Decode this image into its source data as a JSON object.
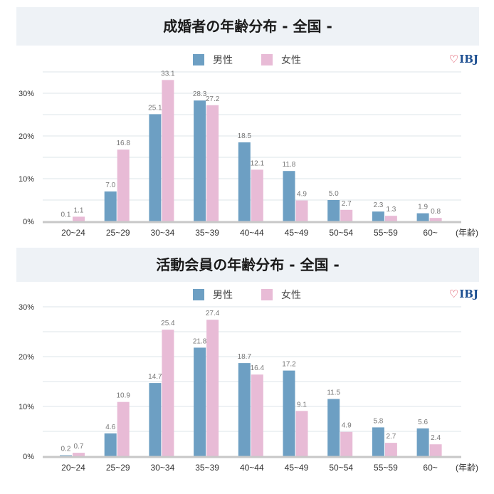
{
  "colors": {
    "male": "#6d9fc3",
    "female": "#e8bbd6",
    "title_bg": "#eef2f6"
  },
  "logo": "IBJ",
  "chart_data": [
    {
      "type": "bar",
      "title": "成婚者の年齢分布 - 全国 -",
      "legend": [
        "男性",
        "女性"
      ],
      "xlabel": "(年齢)",
      "ylabel": "",
      "ylim": [
        0,
        35
      ],
      "yticks": [
        0,
        10,
        20,
        30
      ],
      "ytick_labels": [
        "0%",
        "10%",
        "20%",
        "30%"
      ],
      "grid": true,
      "legend_position": "top-center",
      "categories": [
        "20~24",
        "25~29",
        "30~34",
        "35~39",
        "40~44",
        "45~49",
        "50~54",
        "55~59",
        "60~"
      ],
      "series": [
        {
          "name": "男性",
          "values": [
            0.1,
            7.0,
            25.1,
            28.3,
            18.5,
            11.8,
            5.0,
            2.3,
            1.9
          ]
        },
        {
          "name": "女性",
          "values": [
            1.1,
            16.8,
            33.1,
            27.2,
            12.1,
            4.9,
            2.7,
            1.3,
            0.8
          ]
        }
      ]
    },
    {
      "type": "bar",
      "title": "活動会員の年齢分布 - 全国 -",
      "legend": [
        "男性",
        "女性"
      ],
      "xlabel": "(年齢)",
      "ylabel": "",
      "ylim": [
        0,
        30
      ],
      "yticks": [
        0,
        10,
        20,
        30
      ],
      "ytick_labels": [
        "0%",
        "10%",
        "20%",
        "30%"
      ],
      "grid": true,
      "legend_position": "top-center",
      "categories": [
        "20~24",
        "25~29",
        "30~34",
        "35~39",
        "40~44",
        "45~49",
        "50~54",
        "55~59",
        "60~"
      ],
      "series": [
        {
          "name": "男性",
          "values": [
            0.2,
            4.6,
            14.7,
            21.8,
            18.7,
            17.2,
            11.5,
            5.8,
            5.6
          ]
        },
        {
          "name": "女性",
          "values": [
            0.7,
            10.9,
            25.4,
            27.4,
            16.4,
            9.1,
            4.9,
            2.7,
            2.4
          ]
        }
      ]
    }
  ]
}
